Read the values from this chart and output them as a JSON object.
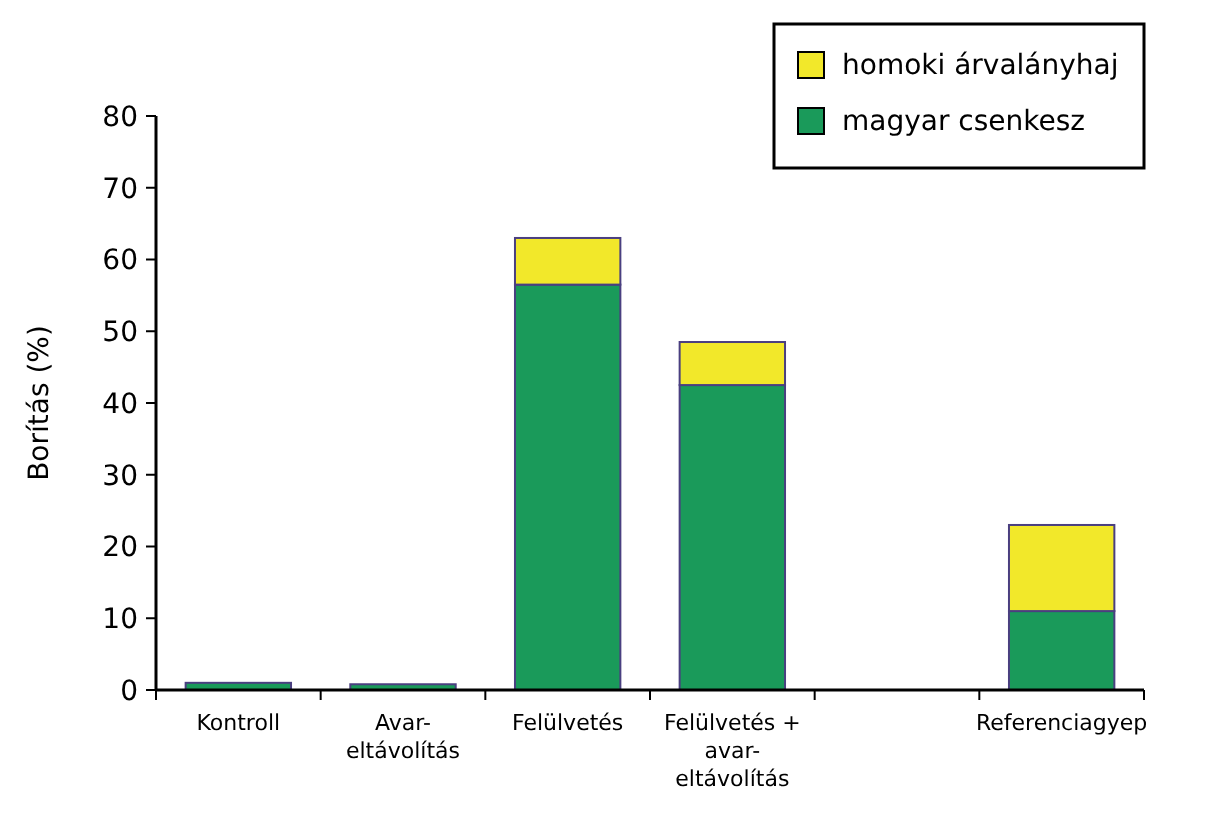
{
  "chart_data": {
    "type": "bar",
    "stacked": true,
    "ylabel": "Borítás (%)",
    "categories": [
      "Kontroll",
      "Avar-\neltávolítás",
      "Felülvetés",
      "Felülvetés +\navar-\neltávolítás",
      null,
      "Referenciagyep"
    ],
    "series": [
      {
        "name": "magyar csenkesz",
        "color": "#1a9a5a",
        "values": [
          1,
          0.8,
          56.5,
          42.5,
          null,
          11
        ]
      },
      {
        "name": "homoki árvalányhaj",
        "color": "#f2e82a",
        "values": [
          null,
          null,
          6.5,
          6,
          null,
          12
        ]
      }
    ],
    "ylim": [
      0,
      80
    ],
    "yticks": [
      0,
      10,
      20,
      30,
      40,
      50,
      60,
      70,
      80
    ],
    "grid": false,
    "legend": "top right"
  }
}
